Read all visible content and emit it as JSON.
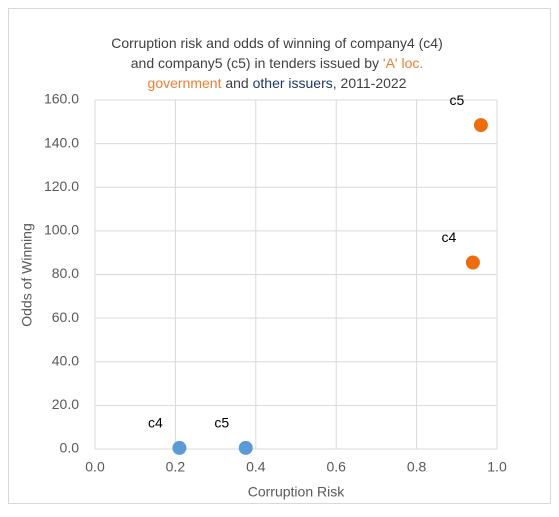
{
  "chart_data": {
    "type": "scatter",
    "title_lines": [
      [
        {
          "text": "Corruption risk and odds of winning of company4 (c4)",
          "color": "#404040"
        }
      ],
      [
        {
          "text": "and company5 (c5) in tenders issued by ",
          "color": "#404040"
        },
        {
          "text": "'A' loc.",
          "color": "#ed7d31"
        }
      ],
      [
        {
          "text": "government",
          "color": "#ed7d31"
        },
        {
          "text": " and ",
          "color": "#404040"
        },
        {
          "text": "other issuers",
          "color": "#1f3864"
        },
        {
          "text": ", 2011-2022",
          "color": "#404040"
        }
      ]
    ],
    "x_label": "Corruption Risk",
    "y_label": "Odds of Winning",
    "series": [
      {
        "color": "#ed6c0e",
        "x": [
          0.96,
          0.94
        ],
        "values": [
          148.5,
          85.5
        ],
        "labels": [
          "c5",
          "c4"
        ]
      },
      {
        "color": "#5b9bd5",
        "x": [
          0.21,
          0.375
        ],
        "values": [
          0.5,
          0.5
        ],
        "labels": [
          "c4",
          "c5"
        ]
      }
    ],
    "xlim": [
      0,
      1
    ],
    "ylim": [
      0,
      160
    ],
    "xticks": [
      {
        "value": 0,
        "label": "0.0"
      },
      {
        "value": 0.2,
        "label": "0.2"
      },
      {
        "value": 0.4,
        "label": "0.4"
      },
      {
        "value": 0.6,
        "label": "0.6"
      },
      {
        "value": 0.8,
        "label": "0.8"
      },
      {
        "value": 1,
        "label": "1.0"
      }
    ],
    "yticks": [
      {
        "value": 0,
        "label": "0.0"
      },
      {
        "value": 20,
        "label": "20.0"
      },
      {
        "value": 40,
        "label": "40.0"
      },
      {
        "value": 60,
        "label": "60.0"
      },
      {
        "value": 80,
        "label": "80.0"
      },
      {
        "value": 100,
        "label": "100.0"
      },
      {
        "value": 120,
        "label": "120.0"
      },
      {
        "value": 140,
        "label": "140.0"
      },
      {
        "value": 160,
        "label": "160.0"
      }
    ],
    "grid": true
  }
}
